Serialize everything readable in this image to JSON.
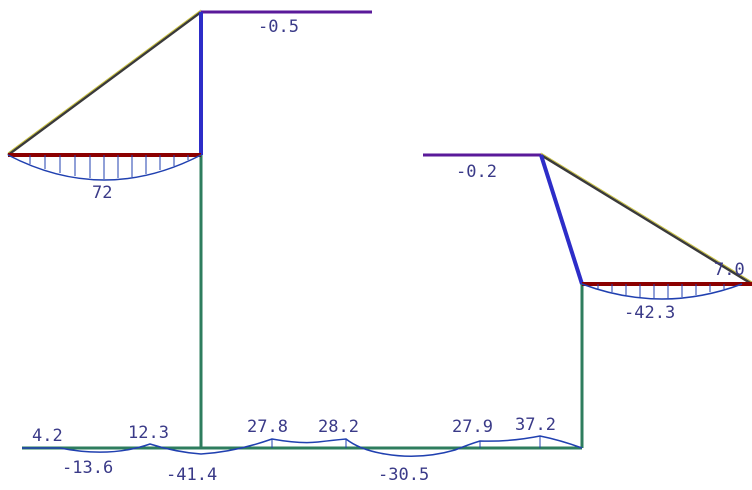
{
  "colors": {
    "background": "#ffffff",
    "column": "#2d2dc8",
    "beam_red": "#8b0000",
    "beam_purple": "#5a1a9a",
    "ground_green": "#2e7d5e",
    "moment_curve": "#2040b0",
    "diagonal": "#3a3a3a",
    "label": "#3a3a88"
  },
  "labels": {
    "top_left": "-0.5",
    "left_beam": "72",
    "right_top": "-0.2",
    "right_edge": "7.0",
    "right_beam": "-42.3",
    "b1": "4.2",
    "b2": "-13.6",
    "b3": "12.3",
    "b4": "-41.4",
    "b5": "27.8",
    "b6": "28.2",
    "b7": "-30.5",
    "b8": "27.9",
    "b9": "37.2"
  }
}
